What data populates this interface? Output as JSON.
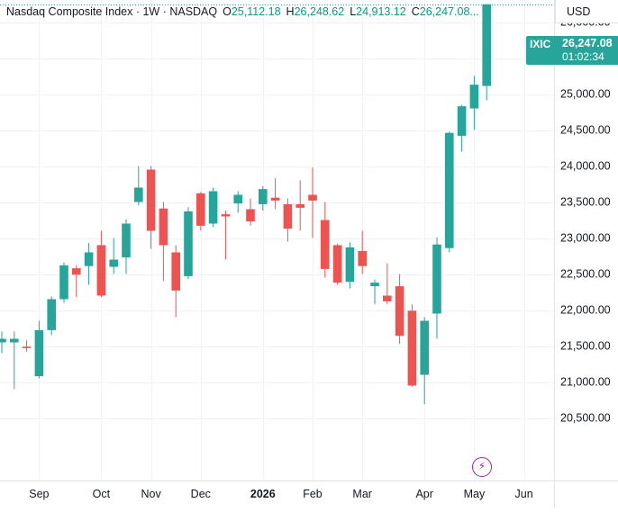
{
  "legend": {
    "title": "Nasdaq Composite Index · 1W · NASDAQ",
    "open_label": "O",
    "open": "25,112.18",
    "high_label": "H",
    "high": "26,248.62",
    "low_label": "L",
    "low": "24,913.12",
    "close_label": "C",
    "close": "26,247.08..."
  },
  "currency_button": "USD",
  "last_price": {
    "symbol": "IXIC",
    "price": "26,247.08",
    "countdown": "01:02:34"
  },
  "event_icon": "lightning-bolt-icon",
  "colors": {
    "up": "#26a69a",
    "down": "#ef5350",
    "grid": "#f0f3fa",
    "axis_text": "#131722",
    "event": "#9c27b0"
  },
  "chart_data": {
    "type": "candlestick",
    "symbol": "IXIC",
    "interval": "1W",
    "y_range": [
      20250,
      26300
    ],
    "y_ticks": [
      "26,000.00",
      "25,500.00",
      "25,000.00",
      "24,500.00",
      "24,000.00",
      "23,500.00",
      "23,000.00",
      "22,500.00",
      "22,000.00",
      "21,500.00",
      "21,000.00",
      "20,500.00"
    ],
    "y_tick_values": [
      26000,
      25500,
      25000,
      24500,
      24000,
      23500,
      23000,
      22500,
      22000,
      21500,
      21000,
      20500
    ],
    "x_labels": [
      "Sep",
      "Oct",
      "Nov",
      "Dec",
      "2026",
      "Feb",
      "Mar",
      "Apr",
      "May",
      "Jun"
    ],
    "x_label_index": [
      3,
      8,
      12,
      16,
      21,
      25,
      29,
      34,
      38,
      42
    ],
    "grid": true,
    "candles": [
      {
        "o": 21550,
        "h": 21700,
        "l": 21400,
        "c": 21600
      },
      {
        "o": 21550,
        "h": 21700,
        "l": 20900,
        "c": 21600
      },
      {
        "o": 21490,
        "h": 21580,
        "l": 21420,
        "c": 21470
      },
      {
        "o": 21080,
        "h": 21850,
        "l": 21050,
        "c": 21720
      },
      {
        "o": 21720,
        "h": 22190,
        "l": 21650,
        "c": 22150
      },
      {
        "o": 22150,
        "h": 22660,
        "l": 22100,
        "c": 22620
      },
      {
        "o": 22580,
        "h": 22620,
        "l": 22180,
        "c": 22490
      },
      {
        "o": 22610,
        "h": 22930,
        "l": 22350,
        "c": 22800
      },
      {
        "o": 22900,
        "h": 23100,
        "l": 22180,
        "c": 22200
      },
      {
        "o": 22600,
        "h": 23000,
        "l": 22500,
        "c": 22700
      },
      {
        "o": 22730,
        "h": 23260,
        "l": 22500,
        "c": 23200
      },
      {
        "o": 23500,
        "h": 24000,
        "l": 23450,
        "c": 23700
      },
      {
        "o": 23950,
        "h": 24000,
        "l": 22850,
        "c": 23100
      },
      {
        "o": 23410,
        "h": 23500,
        "l": 22400,
        "c": 22900
      },
      {
        "o": 22800,
        "h": 22900,
        "l": 21900,
        "c": 22270
      },
      {
        "o": 22470,
        "h": 23430,
        "l": 22430,
        "c": 23370
      },
      {
        "o": 23620,
        "h": 23640,
        "l": 23100,
        "c": 23170
      },
      {
        "o": 23200,
        "h": 23700,
        "l": 23150,
        "c": 23650
      },
      {
        "o": 23330,
        "h": 23380,
        "l": 22700,
        "c": 23300
      },
      {
        "o": 23480,
        "h": 23650,
        "l": 23350,
        "c": 23600
      },
      {
        "o": 23400,
        "h": 23550,
        "l": 23170,
        "c": 23230
      },
      {
        "o": 23470,
        "h": 23720,
        "l": 23380,
        "c": 23680
      },
      {
        "o": 23560,
        "h": 23830,
        "l": 23400,
        "c": 23520
      },
      {
        "o": 23470,
        "h": 23550,
        "l": 22950,
        "c": 23130
      },
      {
        "o": 23470,
        "h": 23800,
        "l": 23100,
        "c": 23420
      },
      {
        "o": 23600,
        "h": 23980,
        "l": 23000,
        "c": 23520
      },
      {
        "o": 23250,
        "h": 23500,
        "l": 22450,
        "c": 22570
      },
      {
        "o": 22900,
        "h": 22920,
        "l": 22350,
        "c": 22380
      },
      {
        "o": 22390,
        "h": 22940,
        "l": 22300,
        "c": 22870
      },
      {
        "o": 22820,
        "h": 23100,
        "l": 22500,
        "c": 22610
      },
      {
        "o": 22330,
        "h": 22420,
        "l": 22080,
        "c": 22380
      },
      {
        "o": 22200,
        "h": 22650,
        "l": 22080,
        "c": 22120
      },
      {
        "o": 22330,
        "h": 22500,
        "l": 21530,
        "c": 21640
      },
      {
        "o": 21990,
        "h": 22080,
        "l": 20930,
        "c": 20950
      },
      {
        "o": 21100,
        "h": 21900,
        "l": 20690,
        "c": 21850
      },
      {
        "o": 21950,
        "h": 23010,
        "l": 21600,
        "c": 22910
      },
      {
        "o": 22860,
        "h": 24480,
        "l": 22800,
        "c": 24460
      },
      {
        "o": 24420,
        "h": 24850,
        "l": 24200,
        "c": 24830
      },
      {
        "o": 24800,
        "h": 25250,
        "l": 24500,
        "c": 25130
      },
      {
        "o": 25112.18,
        "h": 26248.62,
        "l": 24913.12,
        "c": 26247.08
      }
    ]
  }
}
